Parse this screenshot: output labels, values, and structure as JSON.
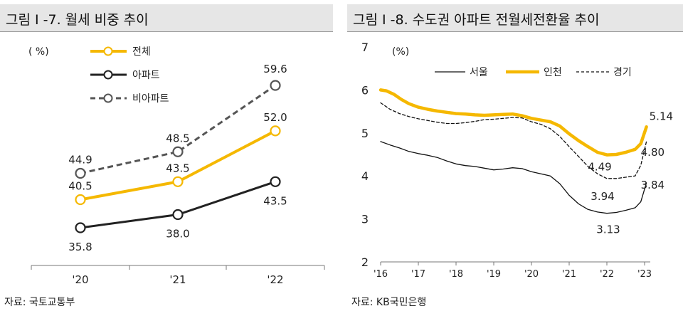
{
  "charts": {
    "left": {
      "title": "그림 I -7. 월세 비중 추이",
      "source": "자료: 국토교통부",
      "unit_label": "( %)"
    },
    "right": {
      "title": "그림 I -8. 수도권 아파트 전월세전환율 추이",
      "source": "자료: KB국민은행",
      "unit_label": "(%)"
    }
  },
  "chart_data": [
    {
      "type": "line",
      "title": "그림 I -7. 월세 비중 추이",
      "ylabel": "( %)",
      "categories": [
        "'20",
        "'21",
        "'22"
      ],
      "ylim": [
        30,
        65
      ],
      "legend_position": "top-left",
      "series": [
        {
          "name": "전체",
          "values": [
            40.5,
            43.5,
            52.0
          ],
          "color": "#f5b800",
          "style": "solid"
        },
        {
          "name": "아파트",
          "values": [
            35.8,
            38.0,
            43.5
          ],
          "color": "#222222",
          "style": "solid"
        },
        {
          "name": "비아파트",
          "values": [
            44.9,
            48.5,
            59.6
          ],
          "color": "#555555",
          "style": "dashed"
        }
      ],
      "data_labels": [
        {
          "text": "40.5",
          "series": "전체",
          "index": 0
        },
        {
          "text": "43.5",
          "series": "전체",
          "index": 1
        },
        {
          "text": "52.0",
          "series": "전체",
          "index": 2
        },
        {
          "text": "35.8",
          "series": "아파트",
          "index": 0
        },
        {
          "text": "38.0",
          "series": "아파트",
          "index": 1
        },
        {
          "text": "43.5",
          "series": "아파트",
          "index": 2
        },
        {
          "text": "44.9",
          "series": "비아파트",
          "index": 0
        },
        {
          "text": "48.5",
          "series": "비아파트",
          "index": 1
        },
        {
          "text": "59.6",
          "series": "비아파트",
          "index": 2
        }
      ]
    },
    {
      "type": "line",
      "title": "그림 I -8. 수도권 아파트 전월세전환율 추이",
      "ylabel": "(%)",
      "ylim": [
        2,
        7
      ],
      "yticks": [
        2,
        3,
        4,
        5,
        6,
        7
      ],
      "xlim": [
        2016,
        2023.1
      ],
      "xticks": [
        {
          "value": 2016,
          "label": "'16"
        },
        {
          "value": 2017,
          "label": "'17"
        },
        {
          "value": 2018,
          "label": "'18"
        },
        {
          "value": 2019,
          "label": "'19"
        },
        {
          "value": 2020,
          "label": "'20"
        },
        {
          "value": 2021,
          "label": "'21"
        },
        {
          "value": 2022,
          "label": "'22"
        },
        {
          "value": 2023,
          "label": "'23"
        }
      ],
      "legend_position": "top-center",
      "series": [
        {
          "name": "서울",
          "color": "#111111",
          "style": "solid",
          "width": 1.3,
          "x": [
            2016.0,
            2016.25,
            2016.5,
            2016.75,
            2017.0,
            2017.25,
            2017.5,
            2017.75,
            2018.0,
            2018.25,
            2018.5,
            2018.75,
            2019.0,
            2019.25,
            2019.5,
            2019.75,
            2020.0,
            2020.25,
            2020.5,
            2020.75,
            2021.0,
            2021.25,
            2021.5,
            2021.75,
            2022.0,
            2022.25,
            2022.5,
            2022.75,
            2022.9,
            2023.05
          ],
          "y": [
            4.8,
            4.72,
            4.65,
            4.57,
            4.52,
            4.48,
            4.43,
            4.35,
            4.28,
            4.24,
            4.22,
            4.18,
            4.14,
            4.16,
            4.19,
            4.17,
            4.1,
            4.05,
            4.0,
            3.82,
            3.55,
            3.35,
            3.22,
            3.16,
            3.13,
            3.15,
            3.2,
            3.26,
            3.4,
            3.84
          ]
        },
        {
          "name": "인천",
          "color": "#f5b800",
          "style": "solid",
          "width": 4.5,
          "x": [
            2016.0,
            2016.15,
            2016.35,
            2016.55,
            2016.75,
            2017.0,
            2017.25,
            2017.5,
            2017.75,
            2018.0,
            2018.25,
            2018.5,
            2018.75,
            2019.0,
            2019.25,
            2019.5,
            2019.75,
            2020.0,
            2020.25,
            2020.5,
            2020.75,
            2021.0,
            2021.25,
            2021.5,
            2021.75,
            2022.0,
            2022.25,
            2022.5,
            2022.75,
            2022.9,
            2023.05
          ],
          "y": [
            6.0,
            5.98,
            5.9,
            5.78,
            5.68,
            5.6,
            5.55,
            5.51,
            5.48,
            5.45,
            5.44,
            5.42,
            5.41,
            5.42,
            5.43,
            5.44,
            5.4,
            5.34,
            5.3,
            5.26,
            5.16,
            4.98,
            4.82,
            4.68,
            4.55,
            4.49,
            4.5,
            4.55,
            4.62,
            4.75,
            5.14
          ]
        },
        {
          "name": "경기",
          "color": "#111111",
          "style": "dashed",
          "width": 1.3,
          "x": [
            2016.0,
            2016.25,
            2016.5,
            2016.75,
            2017.0,
            2017.25,
            2017.5,
            2017.75,
            2018.0,
            2018.25,
            2018.5,
            2018.75,
            2019.0,
            2019.25,
            2019.5,
            2019.75,
            2020.0,
            2020.25,
            2020.5,
            2020.75,
            2021.0,
            2021.25,
            2021.5,
            2021.75,
            2022.0,
            2022.25,
            2022.5,
            2022.75,
            2022.9,
            2023.05
          ],
          "y": [
            5.7,
            5.55,
            5.45,
            5.38,
            5.33,
            5.29,
            5.25,
            5.22,
            5.22,
            5.24,
            5.27,
            5.31,
            5.32,
            5.34,
            5.36,
            5.35,
            5.26,
            5.2,
            5.1,
            4.92,
            4.68,
            4.45,
            4.22,
            4.05,
            3.94,
            3.94,
            3.97,
            4.0,
            4.25,
            4.8
          ]
        }
      ],
      "annotations": [
        {
          "text": "5.14",
          "series": "인천",
          "x": 2023.05,
          "y": 5.14
        },
        {
          "text": "4.80",
          "series": "경기",
          "x": 2023.05,
          "y": 4.8
        },
        {
          "text": "4.49",
          "series": "인천",
          "x": 2022.0,
          "y": 4.49
        },
        {
          "text": "3.94",
          "series": "경기",
          "x": 2022.0,
          "y": 3.94
        },
        {
          "text": "3.84",
          "series": "서울",
          "x": 2023.05,
          "y": 3.84
        },
        {
          "text": "3.13",
          "series": "서울",
          "x": 2022.0,
          "y": 3.13
        }
      ]
    }
  ]
}
